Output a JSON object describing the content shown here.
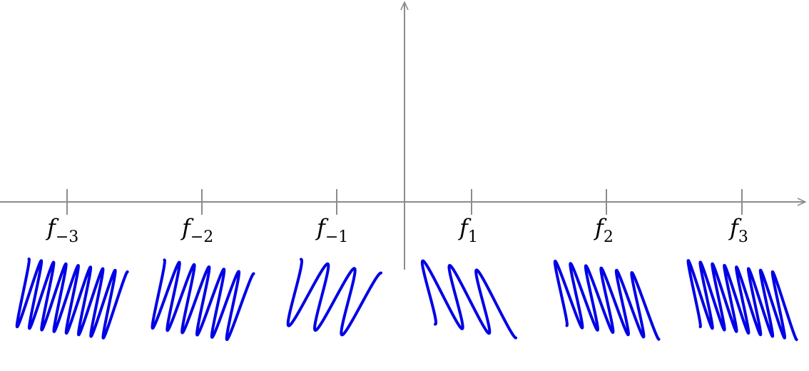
{
  "axis": {
    "color": "#8c8c8c"
  },
  "spring_color": "#0000e6",
  "frequencies": [
    {
      "name": "f",
      "subscript": "−3",
      "turns": 8
    },
    {
      "name": "f",
      "subscript": "−2",
      "turns": 6
    },
    {
      "name": "f",
      "subscript": "−1",
      "turns": 3
    },
    {
      "name": "f",
      "subscript": "1",
      "turns": 3
    },
    {
      "name": "f",
      "subscript": "2",
      "turns": 6
    },
    {
      "name": "f",
      "subscript": "3",
      "turns": 8
    }
  ]
}
